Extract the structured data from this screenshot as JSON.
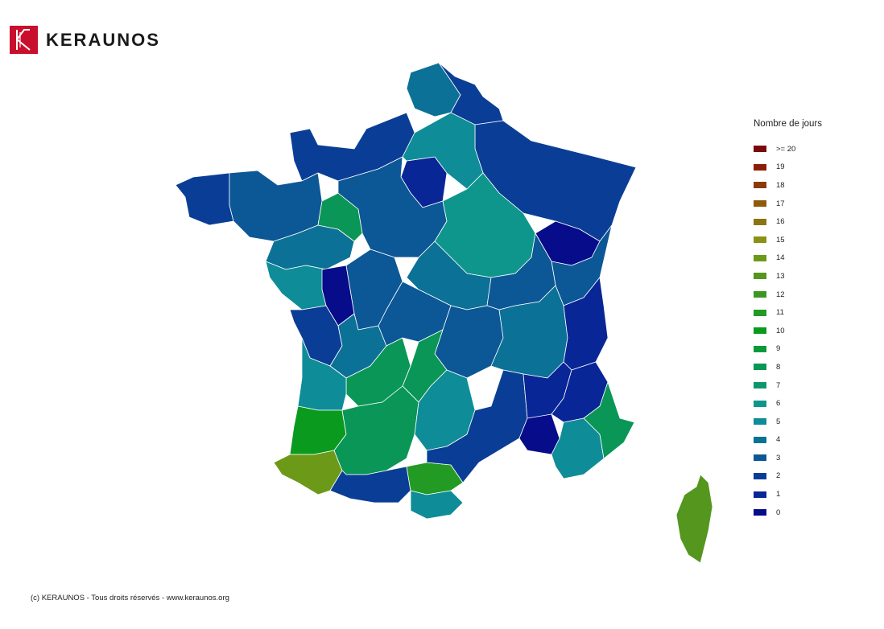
{
  "brand": {
    "name": "KERAUNOS",
    "color": "#c8102e"
  },
  "legend": {
    "title": "Nombre de jours",
    "items": [
      {
        "label": ">= 20",
        "color": "#7a0a0a"
      },
      {
        "label": "19",
        "color": "#8a1e08"
      },
      {
        "label": "18",
        "color": "#8c3a06"
      },
      {
        "label": "17",
        "color": "#8f5a0c"
      },
      {
        "label": "16",
        "color": "#8c7412"
      },
      {
        "label": "15",
        "color": "#8a9216"
      },
      {
        "label": "14",
        "color": "#6c9a18"
      },
      {
        "label": "13",
        "color": "#54961e"
      },
      {
        "label": "12",
        "color": "#3c9622"
      },
      {
        "label": "11",
        "color": "#229a24"
      },
      {
        "label": "10",
        "color": "#0a9a1e"
      },
      {
        "label": "9",
        "color": "#089a3a"
      },
      {
        "label": "8",
        "color": "#0a9656"
      },
      {
        "label": "7",
        "color": "#0e9670"
      },
      {
        "label": "6",
        "color": "#0e968c"
      },
      {
        "label": "5",
        "color": "#0e8c98"
      },
      {
        "label": "4",
        "color": "#0c7196"
      },
      {
        "label": "3",
        "color": "#0c5796"
      },
      {
        "label": "2",
        "color": "#0a3e96"
      },
      {
        "label": "1",
        "color": "#082696"
      },
      {
        "label": "0",
        "color": "#060c8a"
      }
    ]
  },
  "footer": {
    "text": "(c) KERAUNOS - Tous droits réservés - www.keraunos.org"
  },
  "map": {
    "regions": [
      {
        "name": "nord",
        "color": "#0a3e96"
      },
      {
        "name": "nord-coast",
        "color": "#0c7196"
      },
      {
        "name": "normandie",
        "color": "#0a3e96"
      },
      {
        "name": "ile-de-france",
        "color": "#082696"
      },
      {
        "name": "grand-est",
        "color": "#0a3e96"
      },
      {
        "name": "bretagne",
        "color": "#0c5796"
      },
      {
        "name": "finistere",
        "color": "#0a3e96"
      },
      {
        "name": "pays-de-la-loire",
        "color": "#0c7196"
      },
      {
        "name": "centre",
        "color": "#0c5796"
      },
      {
        "name": "bourgogne",
        "color": "#0e968c"
      },
      {
        "name": "franche-comte",
        "color": "#060c8a"
      },
      {
        "name": "doubs",
        "color": "#0c5796"
      },
      {
        "name": "vendee",
        "color": "#0e8c98"
      },
      {
        "name": "deux-sevres",
        "color": "#060c8a"
      },
      {
        "name": "nouvelle-aquitaine-north",
        "color": "#0c7196"
      },
      {
        "name": "charente-maritime",
        "color": "#0a3e96"
      },
      {
        "name": "gironde",
        "color": "#0e8c98"
      },
      {
        "name": "dordogne",
        "color": "#0a9656"
      },
      {
        "name": "landes",
        "color": "#0a9a1e"
      },
      {
        "name": "pyrenees-atlantiques",
        "color": "#6c9a18"
      },
      {
        "name": "midi-pyrenees",
        "color": "#0a9656"
      },
      {
        "name": "aude",
        "color": "#229a24"
      },
      {
        "name": "pyrenees-orientales",
        "color": "#0e8c98"
      },
      {
        "name": "auvergne",
        "color": "#0c5796"
      },
      {
        "name": "aveyron",
        "color": "#0e8c98"
      },
      {
        "name": "rhone-alpes",
        "color": "#0c7196"
      },
      {
        "name": "savoie",
        "color": "#082696"
      },
      {
        "name": "isere",
        "color": "#082696"
      },
      {
        "name": "drome-ardeche",
        "color": "#082696"
      },
      {
        "name": "gard-herault",
        "color": "#0a3e96"
      },
      {
        "name": "bouches-du-rhone",
        "color": "#060c8a"
      },
      {
        "name": "var",
        "color": "#0e8c98"
      },
      {
        "name": "alpes-maritimes",
        "color": "#0a9656"
      },
      {
        "name": "alpes-haute-provence",
        "color": "#082696"
      },
      {
        "name": "corse",
        "color": "#54961e"
      },
      {
        "name": "cote-dor-area",
        "color": "#0e968c"
      },
      {
        "name": "loiret",
        "color": "#0c5796"
      },
      {
        "name": "allier",
        "color": "#0e8c98"
      },
      {
        "name": "puy-de-dome",
        "color": "#0c7196"
      },
      {
        "name": "haute-vienne",
        "color": "#0c5796"
      },
      {
        "name": "lot",
        "color": "#0a9656"
      },
      {
        "name": "tarn",
        "color": "#0a3e96"
      },
      {
        "name": "sarthe",
        "color": "#0a9656"
      }
    ]
  }
}
